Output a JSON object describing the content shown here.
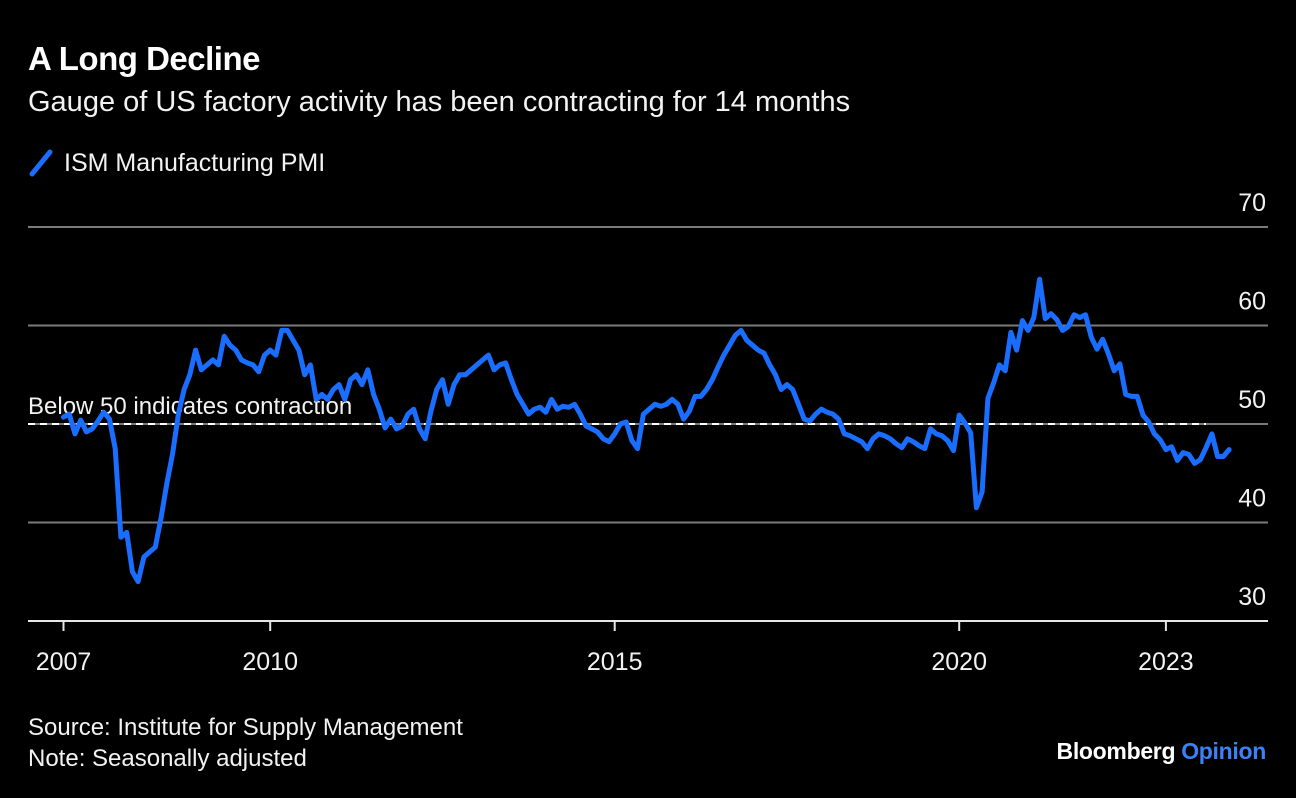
{
  "title": "A Long Decline",
  "subtitle": "Gauge of US factory activity has been contracting for 14 months",
  "source": "Source: Institute for Supply Management",
  "note": "Note: Seasonally adjusted",
  "brand": {
    "name": "Bloomberg",
    "suffix": "Opinion"
  },
  "colors": {
    "series": "#1a6eff",
    "background": "#000000",
    "grid": "#7a7a7a",
    "brand_accent": "#3b82f6"
  },
  "chart_data": {
    "type": "line",
    "title": "A Long Decline",
    "subtitle": "Gauge of US factory activity has been contracting for 14 months",
    "ylim": [
      30,
      70
    ],
    "xlim": [
      2007.0,
      2023.5
    ],
    "y_ticks": [
      30,
      40,
      50,
      60,
      70
    ],
    "x_ticks": [
      2007,
      2010,
      2015,
      2020,
      2023
    ],
    "grid": true,
    "legend": "top-left",
    "reference_line": {
      "value": 50,
      "label": "Below 50 indicates contraction",
      "style": "dashed"
    },
    "series": [
      {
        "name": "ISM Manufacturing PMI",
        "color": "#1a6eff",
        "points": [
          [
            2007.0,
            50.7
          ],
          [
            2007.083,
            51.0
          ],
          [
            2007.167,
            49.0
          ],
          [
            2007.25,
            50.4
          ],
          [
            2007.333,
            49.2
          ],
          [
            2007.417,
            49.5
          ],
          [
            2007.5,
            50.3
          ],
          [
            2007.583,
            51.2
          ],
          [
            2007.667,
            50.5
          ],
          [
            2007.75,
            47.5
          ],
          [
            2007.833,
            38.5
          ],
          [
            2007.917,
            39.0
          ],
          [
            2008.0,
            35.0
          ],
          [
            2008.083,
            34.0
          ],
          [
            2008.167,
            36.5
          ],
          [
            2008.25,
            37.0
          ],
          [
            2008.333,
            37.5
          ],
          [
            2008.417,
            40.5
          ],
          [
            2008.5,
            44.0
          ],
          [
            2008.583,
            47.0
          ],
          [
            2008.667,
            51.0
          ],
          [
            2008.75,
            53.5
          ],
          [
            2008.833,
            55.0
          ],
          [
            2008.917,
            57.5
          ],
          [
            2009.0,
            55.5
          ],
          [
            2009.083,
            56.0
          ],
          [
            2009.167,
            56.5
          ],
          [
            2009.25,
            56.0
          ],
          [
            2009.333,
            58.9
          ],
          [
            2009.417,
            58.0
          ],
          [
            2009.5,
            57.5
          ],
          [
            2009.583,
            56.5
          ],
          [
            2009.667,
            56.2
          ],
          [
            2009.75,
            56.0
          ],
          [
            2009.833,
            55.3
          ],
          [
            2009.917,
            57.0
          ],
          [
            2010.0,
            57.5
          ],
          [
            2010.083,
            57.0
          ],
          [
            2010.167,
            59.5
          ],
          [
            2010.25,
            59.5
          ],
          [
            2010.333,
            58.5
          ],
          [
            2010.417,
            57.5
          ],
          [
            2010.5,
            55.0
          ],
          [
            2010.583,
            56.0
          ],
          [
            2010.667,
            52.5
          ],
          [
            2010.75,
            53.0
          ],
          [
            2010.833,
            52.5
          ],
          [
            2010.917,
            53.5
          ],
          [
            2011.0,
            54.0
          ],
          [
            2011.083,
            52.5
          ],
          [
            2011.167,
            54.5
          ],
          [
            2011.25,
            55.0
          ],
          [
            2011.333,
            54.0
          ],
          [
            2011.417,
            55.5
          ],
          [
            2011.5,
            53.0
          ],
          [
            2011.583,
            51.5
          ],
          [
            2011.667,
            49.6
          ],
          [
            2011.75,
            50.5
          ],
          [
            2011.833,
            49.5
          ],
          [
            2011.917,
            49.8
          ],
          [
            2012.0,
            51.0
          ],
          [
            2012.083,
            51.5
          ],
          [
            2012.167,
            49.5
          ],
          [
            2012.25,
            48.5
          ],
          [
            2012.333,
            51.3
          ],
          [
            2012.417,
            53.5
          ],
          [
            2012.5,
            54.5
          ],
          [
            2012.583,
            52.0
          ],
          [
            2012.667,
            54.0
          ],
          [
            2012.75,
            55.0
          ],
          [
            2012.833,
            55.0
          ],
          [
            2012.917,
            55.5
          ],
          [
            2013.0,
            56.0
          ],
          [
            2013.083,
            56.5
          ],
          [
            2013.167,
            57.0
          ],
          [
            2013.25,
            55.5
          ],
          [
            2013.333,
            56.0
          ],
          [
            2013.417,
            56.2
          ],
          [
            2013.5,
            54.5
          ],
          [
            2013.583,
            53.0
          ],
          [
            2013.667,
            52.0
          ],
          [
            2013.75,
            51.0
          ],
          [
            2013.833,
            51.5
          ],
          [
            2013.917,
            51.7
          ],
          [
            2014.0,
            51.2
          ],
          [
            2014.083,
            52.5
          ],
          [
            2014.167,
            51.5
          ],
          [
            2014.25,
            51.8
          ],
          [
            2014.333,
            51.7
          ],
          [
            2014.417,
            52.0
          ],
          [
            2014.5,
            51.0
          ],
          [
            2014.583,
            49.8
          ],
          [
            2014.667,
            49.5
          ],
          [
            2014.75,
            49.2
          ],
          [
            2014.833,
            48.5
          ],
          [
            2014.917,
            48.2
          ],
          [
            2015.0,
            49.0
          ],
          [
            2015.083,
            50.0
          ],
          [
            2015.167,
            50.2
          ],
          [
            2015.25,
            48.3
          ],
          [
            2015.333,
            47.5
          ],
          [
            2015.417,
            51.0
          ],
          [
            2015.5,
            51.5
          ],
          [
            2015.583,
            52.0
          ],
          [
            2015.667,
            51.8
          ],
          [
            2015.75,
            52.0
          ],
          [
            2015.833,
            52.5
          ],
          [
            2015.917,
            52.0
          ],
          [
            2016.0,
            50.5
          ],
          [
            2016.083,
            51.3
          ],
          [
            2016.167,
            52.8
          ],
          [
            2016.25,
            52.8
          ],
          [
            2016.333,
            53.5
          ],
          [
            2016.417,
            54.5
          ],
          [
            2016.5,
            55.8
          ],
          [
            2016.583,
            57.0
          ],
          [
            2016.667,
            58.0
          ],
          [
            2016.75,
            59.0
          ],
          [
            2016.833,
            59.5
          ],
          [
            2016.917,
            58.5
          ],
          [
            2017.0,
            58.0
          ],
          [
            2017.083,
            57.5
          ],
          [
            2017.167,
            57.2
          ],
          [
            2017.25,
            56.0
          ],
          [
            2017.333,
            55.0
          ],
          [
            2017.417,
            53.5
          ],
          [
            2017.5,
            54.0
          ],
          [
            2017.583,
            53.5
          ],
          [
            2017.667,
            52.0
          ],
          [
            2017.75,
            50.5
          ],
          [
            2017.833,
            50.3
          ],
          [
            2017.917,
            51.0
          ],
          [
            2018.0,
            51.5
          ],
          [
            2018.083,
            51.2
          ],
          [
            2018.167,
            51.0
          ],
          [
            2018.25,
            50.5
          ],
          [
            2018.333,
            49.0
          ],
          [
            2018.417,
            48.8
          ],
          [
            2018.5,
            48.5
          ],
          [
            2018.583,
            48.2
          ],
          [
            2018.667,
            47.5
          ],
          [
            2018.75,
            48.5
          ],
          [
            2018.833,
            49.0
          ],
          [
            2018.917,
            48.8
          ],
          [
            2019.0,
            48.5
          ],
          [
            2019.083,
            48.0
          ],
          [
            2019.167,
            47.6
          ],
          [
            2019.25,
            48.5
          ],
          [
            2019.333,
            48.2
          ],
          [
            2019.417,
            47.8
          ],
          [
            2019.5,
            47.5
          ],
          [
            2019.583,
            49.5
          ],
          [
            2019.667,
            49.0
          ],
          [
            2019.75,
            48.8
          ],
          [
            2019.833,
            48.3
          ],
          [
            2019.917,
            47.3
          ],
          [
            2020.0,
            50.9
          ],
          [
            2020.083,
            50.1
          ],
          [
            2020.167,
            49.1
          ],
          [
            2020.25,
            41.5
          ],
          [
            2020.333,
            43.1
          ],
          [
            2020.417,
            52.6
          ],
          [
            2020.5,
            54.2
          ],
          [
            2020.583,
            56.0
          ],
          [
            2020.667,
            55.4
          ],
          [
            2020.75,
            59.3
          ],
          [
            2020.833,
            57.5
          ],
          [
            2020.917,
            60.5
          ],
          [
            2021.0,
            59.5
          ],
          [
            2021.083,
            60.8
          ],
          [
            2021.167,
            64.7
          ],
          [
            2021.25,
            60.7
          ],
          [
            2021.333,
            61.2
          ],
          [
            2021.417,
            60.6
          ],
          [
            2021.5,
            59.5
          ],
          [
            2021.583,
            59.9
          ],
          [
            2021.667,
            61.1
          ],
          [
            2021.75,
            60.8
          ],
          [
            2021.833,
            61.1
          ],
          [
            2021.917,
            58.8
          ],
          [
            2022.0,
            57.6
          ],
          [
            2022.083,
            58.6
          ],
          [
            2022.167,
            57.1
          ],
          [
            2022.25,
            55.4
          ],
          [
            2022.333,
            56.1
          ],
          [
            2022.417,
            53.0
          ],
          [
            2022.5,
            52.8
          ],
          [
            2022.583,
            52.8
          ],
          [
            2022.667,
            50.9
          ],
          [
            2022.75,
            50.2
          ],
          [
            2022.833,
            49.0
          ],
          [
            2022.917,
            48.4
          ],
          [
            2023.0,
            47.4
          ],
          [
            2023.083,
            47.7
          ],
          [
            2023.167,
            46.3
          ],
          [
            2023.25,
            47.1
          ],
          [
            2023.333,
            46.9
          ],
          [
            2023.417,
            46.0
          ],
          [
            2023.5,
            46.4
          ],
          [
            2023.583,
            47.6
          ],
          [
            2023.667,
            49.0
          ],
          [
            2023.75,
            46.7
          ],
          [
            2023.833,
            46.7
          ],
          [
            2023.917,
            47.4
          ]
        ]
      }
    ]
  }
}
